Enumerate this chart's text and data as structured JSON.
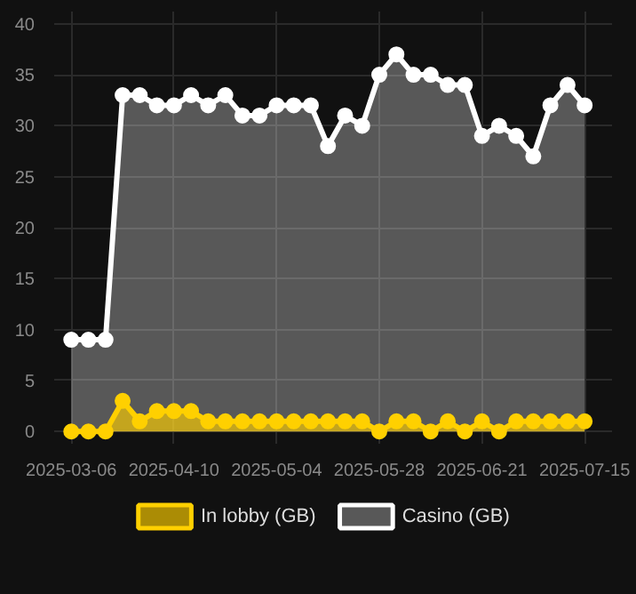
{
  "chart_data": {
    "type": "area",
    "categories": [
      "2025-03-06",
      null,
      null,
      null,
      null,
      null,
      "2025-04-10",
      null,
      null,
      null,
      null,
      null,
      "2025-05-04",
      null,
      null,
      null,
      null,
      null,
      "2025-05-28",
      null,
      null,
      null,
      null,
      null,
      "2025-06-21",
      null,
      null,
      null,
      null,
      null,
      "2025-07-15"
    ],
    "series": [
      {
        "name": "In lobby (GB)",
        "color": "#ffd000",
        "values": [
          0,
          0,
          0,
          3,
          1,
          2,
          2,
          2,
          1,
          1,
          1,
          1,
          1,
          1,
          1,
          1,
          1,
          1,
          0,
          1,
          1,
          0,
          1,
          0,
          1,
          0,
          1,
          1,
          1,
          1,
          1
        ]
      },
      {
        "name": "Casino (GB)",
        "color": "#ffffff",
        "values": [
          9,
          9,
          9,
          33,
          33,
          32,
          32,
          33,
          32,
          33,
          31,
          31,
          32,
          32,
          32,
          28,
          31,
          30,
          35,
          37,
          35,
          35,
          34,
          34,
          29,
          30,
          29,
          27,
          32,
          34,
          32
        ]
      }
    ],
    "ylim": [
      0,
      40
    ],
    "yticks": [
      0,
      5,
      10,
      15,
      20,
      25,
      30,
      35,
      40
    ],
    "grid": true,
    "legend": "bottom",
    "marker": "circle",
    "line_style": "solid"
  }
}
